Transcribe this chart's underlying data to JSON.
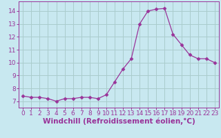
{
  "x": [
    0,
    1,
    2,
    3,
    4,
    5,
    6,
    7,
    8,
    9,
    10,
    11,
    12,
    13,
    14,
    15,
    16,
    17,
    18,
    19,
    20,
    21,
    22,
    23
  ],
  "y": [
    7.4,
    7.3,
    7.3,
    7.2,
    7.0,
    7.2,
    7.2,
    7.3,
    7.3,
    7.2,
    7.5,
    8.5,
    9.5,
    10.3,
    13.0,
    14.0,
    14.15,
    14.2,
    12.2,
    11.4,
    10.6,
    10.3,
    10.3,
    10.0
  ],
  "line_color": "#993399",
  "marker": "D",
  "marker_size": 2.5,
  "bg_color": "#c8e8f0",
  "grid_color": "#aacccc",
  "xlabel": "Windchill (Refroidissement éolien,°C)",
  "xlabel_color": "#993399",
  "xlabel_fontsize": 7.5,
  "tick_color": "#993399",
  "tick_fontsize": 6.5,
  "ylim": [
    6.5,
    14.75
  ],
  "xlim": [
    -0.5,
    23.5
  ],
  "yticks": [
    7,
    8,
    9,
    10,
    11,
    12,
    13,
    14
  ],
  "xticks": [
    0,
    1,
    2,
    3,
    4,
    5,
    6,
    7,
    8,
    9,
    10,
    11,
    12,
    13,
    14,
    15,
    16,
    17,
    18,
    19,
    20,
    21,
    22,
    23
  ]
}
